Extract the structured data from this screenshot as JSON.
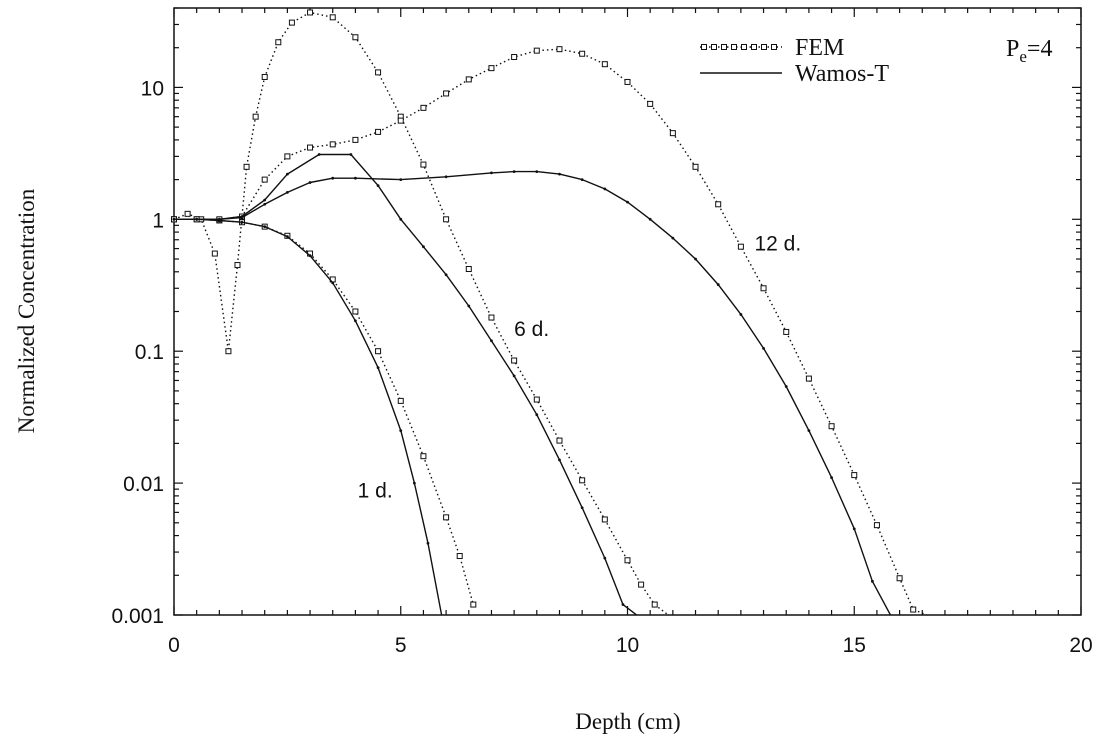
{
  "chart_data": {
    "type": "line",
    "title": "",
    "xlabel": "Depth (cm)",
    "ylabel": "Normalized Concentration",
    "xlim": [
      0,
      20
    ],
    "ylim": [
      0.001,
      40
    ],
    "yscale": "log",
    "grid": false,
    "legend_position": "top-right",
    "x_ticks": [
      {
        "value": 0,
        "label": "0"
      },
      {
        "value": 5,
        "label": "5"
      },
      {
        "value": 10,
        "label": "10"
      },
      {
        "value": 15,
        "label": "15"
      },
      {
        "value": 20,
        "label": "20"
      }
    ],
    "y_ticks": [
      {
        "value": 0.001,
        "label": "0.001"
      },
      {
        "value": 0.01,
        "label": "0.01"
      },
      {
        "value": 0.1,
        "label": "0.1"
      },
      {
        "value": 1,
        "label": "1"
      },
      {
        "value": 10,
        "label": "10"
      }
    ],
    "legend": [
      {
        "label": "FEM",
        "style": "dotted-square"
      },
      {
        "label": "Wamos-T",
        "style": "solid"
      }
    ],
    "parameter_label": {
      "base": "P",
      "subscript": "e",
      "suffix": "=4"
    },
    "annotations": [
      {
        "text": "1 d.",
        "x": 4.05,
        "y": 0.0078
      },
      {
        "text": "6 d.",
        "x": 7.5,
        "y": 0.13
      },
      {
        "text": "12 d.",
        "x": 12.8,
        "y": 0.58
      }
    ],
    "series": [
      {
        "name": "FEM",
        "group": "1 d.",
        "style": "dotted-square",
        "x": [
          0,
          0.5,
          1.0,
          1.5,
          2.0,
          2.5,
          3.0,
          3.5,
          4.0,
          4.5,
          5.0,
          5.5,
          6.0,
          6.3,
          6.6
        ],
        "y": [
          1.0,
          1.0,
          0.98,
          0.95,
          0.88,
          0.75,
          0.55,
          0.35,
          0.2,
          0.1,
          0.042,
          0.016,
          0.0055,
          0.0028,
          0.0012
        ]
      },
      {
        "name": "FEM",
        "group": "6 d.",
        "style": "dotted-square",
        "x": [
          0,
          0.3,
          0.6,
          0.9,
          1.2,
          1.4,
          1.6,
          1.8,
          2.0,
          2.3,
          2.6,
          3.0,
          3.5,
          4.0,
          4.5,
          5.0,
          5.5,
          6.0,
          6.5,
          7.0,
          7.5,
          8.0,
          8.5,
          9.0,
          9.5,
          10.0,
          10.3,
          10.6,
          10.9
        ],
        "y": [
          1.0,
          1.1,
          1.0,
          0.55,
          0.1,
          0.45,
          2.5,
          6.0,
          12.0,
          22.0,
          31.0,
          37.0,
          34.0,
          24.0,
          13.0,
          6.0,
          2.6,
          1.0,
          0.42,
          0.18,
          0.085,
          0.043,
          0.021,
          0.0105,
          0.0053,
          0.0026,
          0.0017,
          0.0012,
          0.00085
        ]
      },
      {
        "name": "FEM",
        "group": "12 d.",
        "style": "dotted-square",
        "x": [
          0,
          0.5,
          1.0,
          1.5,
          2.0,
          2.5,
          3.0,
          3.5,
          4.0,
          4.5,
          5.0,
          5.5,
          6.0,
          6.5,
          7.0,
          7.5,
          8.0,
          8.5,
          9.0,
          9.5,
          10.0,
          10.5,
          11.0,
          11.5,
          12.0,
          12.5,
          13.0,
          13.5,
          14.0,
          14.5,
          15.0,
          15.5,
          16.0,
          16.3,
          16.6
        ],
        "y": [
          1.0,
          1.0,
          1.0,
          1.05,
          2.0,
          3.0,
          3.5,
          3.7,
          4.0,
          4.6,
          5.6,
          7.0,
          9.0,
          11.5,
          14.0,
          17.0,
          19.0,
          19.5,
          18.0,
          15.0,
          11.0,
          7.5,
          4.5,
          2.5,
          1.3,
          0.62,
          0.3,
          0.14,
          0.062,
          0.027,
          0.0115,
          0.0048,
          0.0019,
          0.0011,
          0.00075
        ]
      },
      {
        "name": "Wamos-T",
        "group": "1 d.",
        "style": "solid",
        "x": [
          0,
          0.5,
          1.0,
          1.5,
          2.0,
          2.5,
          3.0,
          3.5,
          4.0,
          4.5,
          5.0,
          5.3,
          5.6,
          5.9
        ],
        "y": [
          1.0,
          1.0,
          0.98,
          0.95,
          0.88,
          0.74,
          0.53,
          0.33,
          0.17,
          0.075,
          0.025,
          0.01,
          0.0035,
          0.0009
        ]
      },
      {
        "name": "Wamos-T",
        "group": "6 d.",
        "style": "solid",
        "x": [
          0,
          0.5,
          1.0,
          1.5,
          2.0,
          2.5,
          3.2,
          3.9,
          4.5,
          5.0,
          5.5,
          6.0,
          6.5,
          7.0,
          7.5,
          8.0,
          8.5,
          9.0,
          9.5,
          9.9,
          10.2
        ],
        "y": [
          1.0,
          1.0,
          1.0,
          1.05,
          1.4,
          2.2,
          3.1,
          3.1,
          1.8,
          1.0,
          0.62,
          0.38,
          0.22,
          0.12,
          0.065,
          0.033,
          0.015,
          0.0065,
          0.0027,
          0.0012,
          0.0008
        ]
      },
      {
        "name": "Wamos-T",
        "group": "12 d.",
        "style": "solid",
        "x": [
          0,
          0.5,
          1.0,
          1.5,
          2.0,
          2.5,
          3.0,
          3.5,
          4.0,
          5.0,
          6.0,
          7.0,
          7.5,
          8.0,
          8.5,
          9.0,
          9.5,
          10.0,
          10.5,
          11.0,
          11.5,
          12.0,
          12.5,
          13.0,
          13.5,
          14.0,
          14.5,
          15.0,
          15.4,
          15.8
        ],
        "y": [
          1.0,
          1.0,
          1.0,
          1.03,
          1.3,
          1.6,
          1.9,
          2.05,
          2.05,
          2.0,
          2.1,
          2.25,
          2.3,
          2.3,
          2.2,
          2.0,
          1.7,
          1.35,
          1.0,
          0.72,
          0.5,
          0.32,
          0.19,
          0.105,
          0.054,
          0.025,
          0.011,
          0.0045,
          0.0018,
          0.0008
        ]
      }
    ]
  }
}
